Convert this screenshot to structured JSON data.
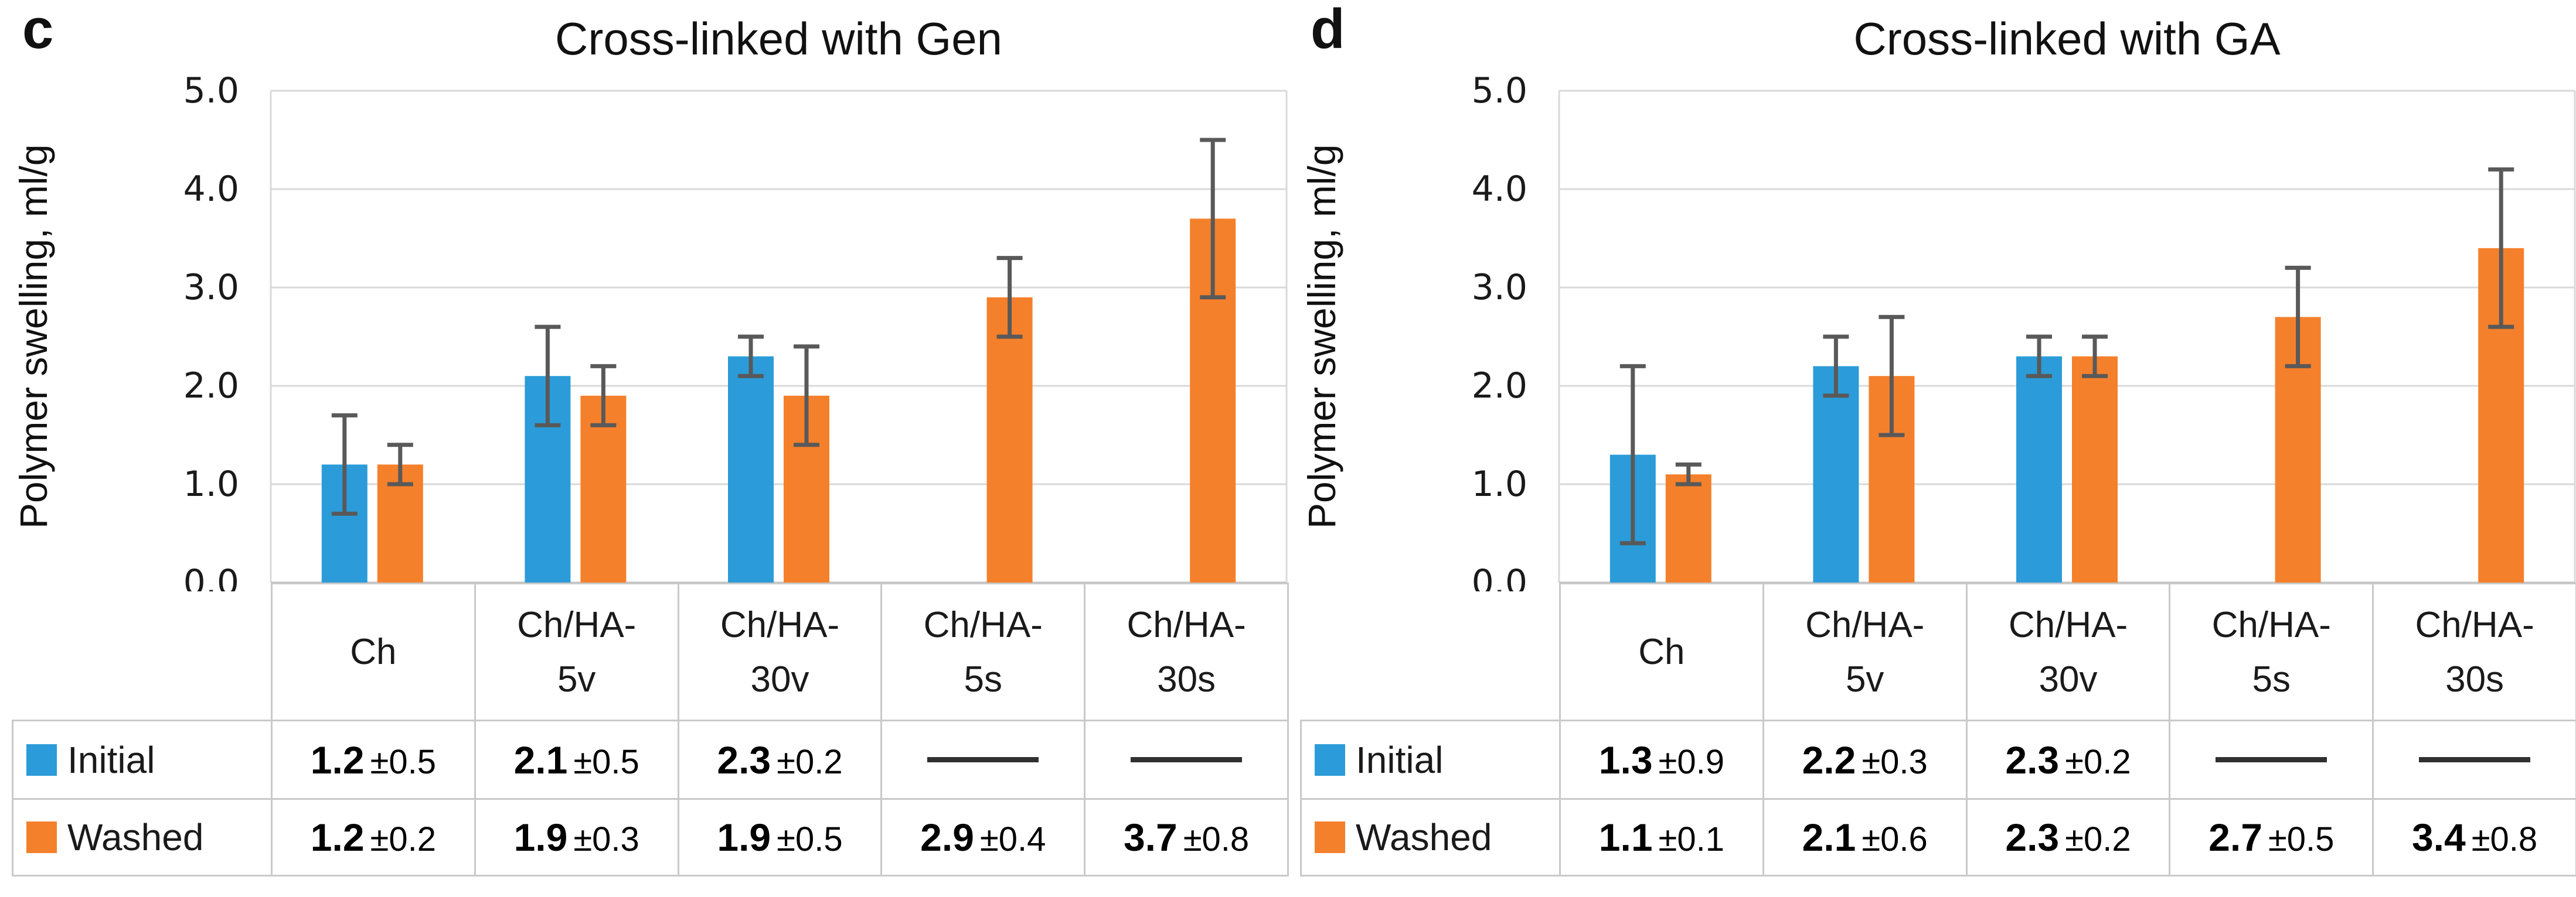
{
  "page": {
    "background": "#ffffff"
  },
  "style": {
    "grid_color": "#d9d9d9",
    "axis_color": "#bfbfbf",
    "error_bar_color": "#595959",
    "table_border_color": "#c9c9c9",
    "dash_color": "#303030"
  },
  "chart_data": [
    {
      "type": "bar",
      "panel_letter": "c",
      "title": "Cross-linked with Gen",
      "ylabel": "Polymer swelling, ml/g",
      "xlabel": "",
      "ylim": [
        0.0,
        5.0
      ],
      "ytick_step": 1.0,
      "ytick_labels": [
        "0.0",
        "1.0",
        "2.0",
        "3.0",
        "4.0",
        "5.0"
      ],
      "grid": true,
      "legend_position": "table-left",
      "categories": [
        "Ch",
        "Ch/HA-5v",
        "Ch/HA-30v",
        "Ch/HA-5s",
        "Ch/HA-30s"
      ],
      "category_display_lines": [
        [
          "Ch"
        ],
        [
          "Ch/HA-",
          "5v"
        ],
        [
          "Ch/HA-",
          "30v"
        ],
        [
          "Ch/HA-",
          "5s"
        ],
        [
          "Ch/HA-",
          "30s"
        ]
      ],
      "series": [
        {
          "name": "Initial",
          "color": "#2b9cd9",
          "values": [
            1.2,
            2.1,
            2.3,
            null,
            null
          ],
          "errors": [
            0.5,
            0.5,
            0.2,
            null,
            null
          ]
        },
        {
          "name": "Washed",
          "color": "#f5802b",
          "values": [
            1.2,
            1.9,
            1.9,
            2.9,
            3.7
          ],
          "errors": [
            0.2,
            0.3,
            0.5,
            0.4,
            0.8
          ]
        }
      ],
      "table_empty_marker": "—",
      "error_prefix": "±"
    },
    {
      "type": "bar",
      "panel_letter": "d",
      "title": "Cross-linked with GA",
      "ylabel": "Polymer swelling, ml/g",
      "xlabel": "",
      "ylim": [
        0.0,
        5.0
      ],
      "ytick_step": 1.0,
      "ytick_labels": [
        "0.0",
        "1.0",
        "2.0",
        "3.0",
        "4.0",
        "5.0"
      ],
      "grid": true,
      "legend_position": "table-left",
      "categories": [
        "Ch",
        "Ch/HA-5v",
        "Ch/HA-30v",
        "Ch/HA-5s",
        "Ch/HA-30s"
      ],
      "category_display_lines": [
        [
          "Ch"
        ],
        [
          "Ch/HA-",
          "5v"
        ],
        [
          "Ch/HA-",
          "30v"
        ],
        [
          "Ch/HA-",
          "5s"
        ],
        [
          "Ch/HA-",
          "30s"
        ]
      ],
      "series": [
        {
          "name": "Initial",
          "color": "#2b9cd9",
          "values": [
            1.3,
            2.2,
            2.3,
            null,
            null
          ],
          "errors": [
            0.9,
            0.3,
            0.2,
            null,
            null
          ]
        },
        {
          "name": "Washed",
          "color": "#f5802b",
          "values": [
            1.1,
            2.1,
            2.3,
            2.7,
            3.4
          ],
          "errors": [
            0.1,
            0.6,
            0.2,
            0.5,
            0.8
          ]
        }
      ],
      "table_empty_marker": "—",
      "error_prefix": "±"
    }
  ]
}
